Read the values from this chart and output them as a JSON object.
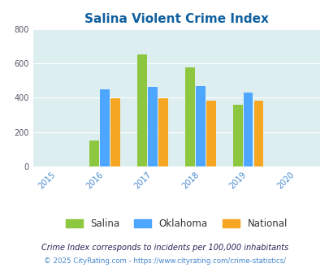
{
  "title": "Salina Violent Crime Index",
  "years": [
    2015,
    2016,
    2017,
    2018,
    2019,
    2020
  ],
  "data": {
    "Salina": [
      null,
      150,
      655,
      578,
      360,
      null
    ],
    "Oklahoma": [
      null,
      450,
      462,
      470,
      432,
      null
    ],
    "National": [
      null,
      398,
      398,
      383,
      383,
      null
    ]
  },
  "colors": {
    "Salina": "#8dc63f",
    "Oklahoma": "#4da6ff",
    "National": "#f5a623"
  },
  "ylim": [
    0,
    800
  ],
  "yticks": [
    0,
    200,
    400,
    600,
    800
  ],
  "xlim": [
    2014.5,
    2020.5
  ],
  "bar_width": 0.22,
  "plot_bg": "#ddeef0",
  "title_color": "#1060a0",
  "title_fontsize": 11,
  "legend_entries": [
    "Salina",
    "Oklahoma",
    "National"
  ],
  "footnote1": "Crime Index corresponds to incidents per 100,000 inhabitants",
  "footnote2": "© 2025 CityRating.com - https://www.cityrating.com/crime-statistics/",
  "footnote_color1": "#222255",
  "footnote_color2": "#4488cc",
  "tick_color": "#4488cc",
  "grid_color": "#ffffff"
}
